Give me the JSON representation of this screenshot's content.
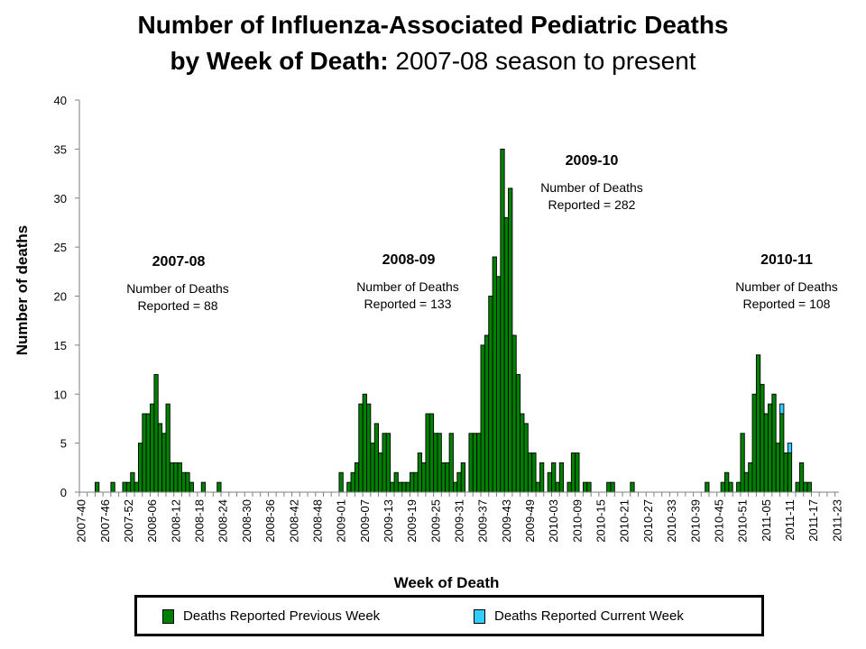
{
  "title": {
    "line1": "Number of Influenza-Associated Pediatric Deaths",
    "line2_bold": "by Week of Death:",
    "line2_rest": " 2007-08 season to present"
  },
  "colors": {
    "previous_week": "#008000",
    "current_week": "#33CCFF"
  },
  "chart_data": {
    "type": "bar",
    "stacked": true,
    "title": "Number of Influenza-Associated Pediatric Deaths by Week of Death: 2007-08 season to present",
    "xlabel": "Week of Death",
    "ylabel": "Number of deaths",
    "ylim": [
      0,
      40
    ],
    "y_ticks": [
      "0",
      "5",
      "10",
      "15",
      "20",
      "25",
      "30",
      "35",
      "40"
    ],
    "x_first_week": "2007-40",
    "x_last_week": "2011-23",
    "x_tick_labels": [
      "2007-40",
      "2007-46",
      "2007-52",
      "2008-06",
      "2008-12",
      "2008-18",
      "2008-24",
      "2008-30",
      "2008-36",
      "2008-42",
      "2008-48",
      "2009-01",
      "2009-07",
      "2009-13",
      "2009-19",
      "2009-25",
      "2009-31",
      "2009-37",
      "2009-43",
      "2009-49",
      "2010-03",
      "2010-09",
      "2010-15",
      "2010-21",
      "2010-27",
      "2010-33",
      "2010-39",
      "2010-45",
      "2010-51",
      "2011-05",
      "2011-11",
      "2011-17",
      "2011-23"
    ],
    "x_tick_every": 6,
    "grid": false,
    "legend_position": "bottom",
    "series": [
      {
        "name": "Deaths Reported Previous Week",
        "values": [
          0,
          0,
          0,
          0,
          1,
          0,
          0,
          0,
          1,
          0,
          0,
          1,
          1,
          2,
          1,
          5,
          8,
          8,
          9,
          12,
          7,
          6,
          9,
          3,
          3,
          3,
          2,
          2,
          1,
          0,
          0,
          1,
          0,
          0,
          0,
          1,
          0,
          0,
          0,
          0,
          0,
          0,
          0,
          0,
          0,
          0,
          0,
          0,
          0,
          0,
          0,
          0,
          0,
          0,
          0,
          0,
          0,
          0,
          0,
          0,
          0,
          0,
          0,
          0,
          0,
          0,
          2,
          0,
          1,
          2,
          3,
          9,
          10,
          9,
          5,
          7,
          4,
          6,
          6,
          1,
          2,
          1,
          1,
          1,
          2,
          2,
          4,
          3,
          8,
          8,
          6,
          6,
          3,
          3,
          6,
          1,
          2,
          3,
          0,
          6,
          6,
          6,
          15,
          16,
          20,
          24,
          22,
          35,
          28,
          31,
          16,
          12,
          8,
          7,
          4,
          4,
          1,
          3,
          0,
          2,
          3,
          1,
          3,
          0,
          1,
          4,
          4,
          0,
          1,
          1,
          0,
          0,
          0,
          0,
          1,
          1,
          0,
          0,
          0,
          0,
          1,
          0,
          0,
          0,
          0,
          0,
          0,
          0,
          0,
          0,
          0,
          0,
          0,
          0,
          0,
          0,
          0,
          0,
          0,
          1,
          0,
          0,
          0,
          1,
          2,
          1,
          0,
          1,
          6,
          2,
          3,
          10,
          14,
          11,
          8,
          9,
          10,
          5,
          8,
          4,
          4,
          0,
          1,
          3,
          1,
          1,
          0,
          0,
          0,
          0,
          0,
          0,
          0
        ]
      },
      {
        "name": "Deaths Reported Current Week",
        "values": [
          0,
          0,
          0,
          0,
          0,
          0,
          0,
          0,
          0,
          0,
          0,
          0,
          0,
          0,
          0,
          0,
          0,
          0,
          0,
          0,
          0,
          0,
          0,
          0,
          0,
          0,
          0,
          0,
          0,
          0,
          0,
          0,
          0,
          0,
          0,
          0,
          0,
          0,
          0,
          0,
          0,
          0,
          0,
          0,
          0,
          0,
          0,
          0,
          0,
          0,
          0,
          0,
          0,
          0,
          0,
          0,
          0,
          0,
          0,
          0,
          0,
          0,
          0,
          0,
          0,
          0,
          0,
          0,
          0,
          0,
          0,
          0,
          0,
          0,
          0,
          0,
          0,
          0,
          0,
          0,
          0,
          0,
          0,
          0,
          0,
          0,
          0,
          0,
          0,
          0,
          0,
          0,
          0,
          0,
          0,
          0,
          0,
          0,
          0,
          0,
          0,
          0,
          0,
          0,
          0,
          0,
          0,
          0,
          0,
          0,
          0,
          0,
          0,
          0,
          0,
          0,
          0,
          0,
          0,
          0,
          0,
          0,
          0,
          0,
          0,
          0,
          0,
          0,
          0,
          0,
          0,
          0,
          0,
          0,
          0,
          0,
          0,
          0,
          0,
          0,
          0,
          0,
          0,
          0,
          0,
          0,
          0,
          0,
          0,
          0,
          0,
          0,
          0,
          0,
          0,
          0,
          0,
          0,
          0,
          0,
          0,
          0,
          0,
          0,
          0,
          0,
          0,
          0,
          0,
          0,
          0,
          0,
          0,
          0,
          0,
          0,
          0,
          0,
          1,
          0,
          1,
          0,
          0,
          0,
          0,
          0,
          0,
          0,
          0,
          0,
          0,
          0,
          0
        ]
      }
    ],
    "annotations": [
      {
        "season": "2007-08",
        "line1": "Number of Deaths",
        "line2": "Reported = 88"
      },
      {
        "season": "2008-09",
        "line1": "Number of Deaths",
        "line2": "Reported = 133"
      },
      {
        "season": "2009-10",
        "line1": "Number of Deaths",
        "line2": "Reported = 282"
      },
      {
        "season": "2010-11",
        "line1": "Number of Deaths",
        "line2": "Reported = 108"
      }
    ]
  }
}
